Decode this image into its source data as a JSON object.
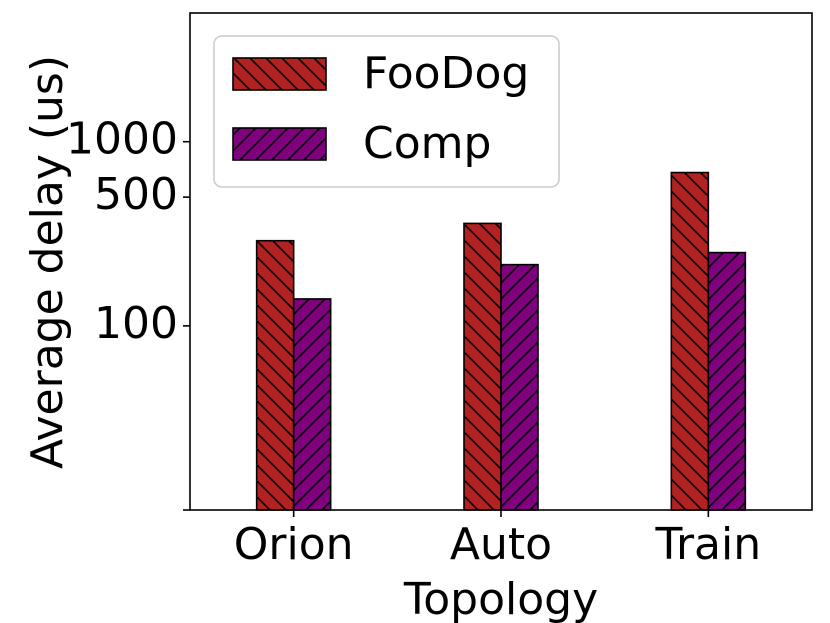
{
  "chart_data": {
    "type": "bar",
    "title": "",
    "xlabel": "Topology",
    "ylabel": "Average delay (us)",
    "y_scale": "log",
    "ylim": [
      10,
      5000
    ],
    "yticks": [
      100,
      500,
      1000
    ],
    "ytick_labels": [
      "100",
      "500",
      "1000"
    ],
    "categories": [
      "Orion",
      "Auto",
      "Train"
    ],
    "series": [
      {
        "name": "FooDog",
        "values": [
          290,
          360,
          680
        ],
        "color": "#b22222",
        "hatch": "backslash"
      },
      {
        "name": "Comp",
        "values": [
          140,
          215,
          250
        ],
        "color": "#800080",
        "hatch": "slash"
      }
    ],
    "legend_position": "top-left",
    "grid": false
  }
}
